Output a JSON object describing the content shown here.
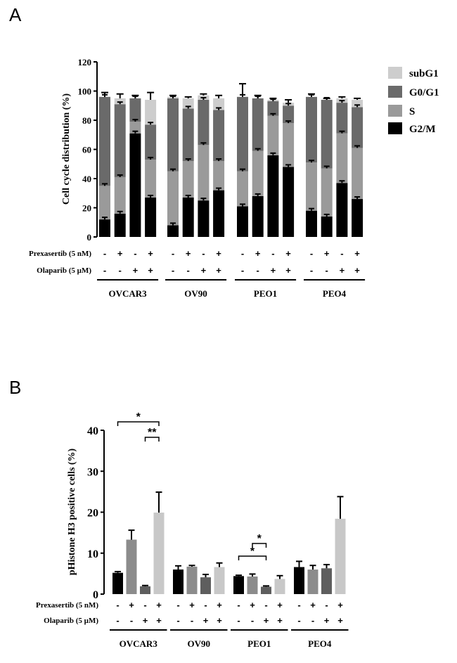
{
  "chart_data": [
    {
      "panel": "A",
      "type": "stacked-bar",
      "ylabel": "Cell cycle distribution (%)",
      "ylim": [
        0,
        120
      ],
      "yticks": [
        "0",
        "20",
        "40",
        "60",
        "80",
        "100",
        "120"
      ],
      "stack_order": [
        "G2/M",
        "S",
        "G0/G1",
        "subG1"
      ],
      "legend": [
        {
          "name": "subG1",
          "color": "#cdcdcd"
        },
        {
          "name": "G0/G1",
          "color": "#6a6a6a"
        },
        {
          "name": "S",
          "color": "#9a9a9a"
        },
        {
          "name": "G2/M",
          "color": "#000000"
        }
      ],
      "row_labels": [
        "Prexasertib (5 nM)",
        "Olaparib (5 µM)"
      ],
      "prexasertib_signs": [
        "-",
        "+",
        "-",
        "+"
      ],
      "olaparib_signs": [
        "-",
        "-",
        "+",
        "+"
      ],
      "groups": [
        {
          "name": "OVCAR3",
          "bars": [
            {
              "G2/M": 12,
              "S": 23,
              "G0/G1": 61,
              "subG1": 0
            },
            {
              "G2/M": 16,
              "S": 25,
              "G0/G1": 50,
              "subG1": 4
            },
            {
              "G2/M": 71,
              "S": 8,
              "G0/G1": 16,
              "subG1": 0
            },
            {
              "G2/M": 27,
              "S": 26,
              "G0/G1": 24,
              "subG1": 17
            }
          ]
        },
        {
          "name": "OV90",
          "bars": [
            {
              "G2/M": 8,
              "S": 37,
              "G0/G1": 50,
              "subG1": 1
            },
            {
              "G2/M": 27,
              "S": 25,
              "G0/G1": 36,
              "subG1": 7
            },
            {
              "G2/M": 25,
              "S": 38,
              "G0/G1": 31,
              "subG1": 3
            },
            {
              "G2/M": 32,
              "S": 20,
              "G0/G1": 35,
              "subG1": 8
            }
          ]
        },
        {
          "name": "PEO1",
          "bars": [
            {
              "G2/M": 21,
              "S": 24,
              "G0/G1": 51,
              "subG1": 0
            },
            {
              "G2/M": 28,
              "S": 31,
              "G0/G1": 36,
              "subG1": 0
            },
            {
              "G2/M": 56,
              "S": 27,
              "G0/G1": 10,
              "subG1": 1
            },
            {
              "G2/M": 48,
              "S": 30,
              "G0/G1": 12,
              "subG1": 2
            }
          ]
        },
        {
          "name": "PEO4",
          "bars": [
            {
              "G2/M": 18,
              "S": 33,
              "G0/G1": 45,
              "subG1": 0
            },
            {
              "G2/M": 14,
              "S": 33,
              "G0/G1": 47,
              "subG1": 0
            },
            {
              "G2/M": 37,
              "S": 34,
              "G0/G1": 21,
              "subG1": 3
            },
            {
              "G2/M": 26,
              "S": 35,
              "G0/G1": 28,
              "subG1": 5
            }
          ]
        }
      ]
    },
    {
      "panel": "B",
      "type": "bar",
      "ylabel": "pHistone H3 positive cells (%)",
      "ylim": [
        0,
        40
      ],
      "yticks": [
        "0",
        "10",
        "20",
        "30",
        "40"
      ],
      "bar_colors": [
        "#000000",
        "#8c8c8c",
        "#5e5e5e",
        "#c8c8c8"
      ],
      "row_labels": [
        "Prexasertib (5 nM)",
        "Olaparib (5 µM)"
      ],
      "prexasertib_signs": [
        "-",
        "+",
        "-",
        "+"
      ],
      "olaparib_signs": [
        "-",
        "-",
        "+",
        "+"
      ],
      "groups": [
        {
          "name": "OVCAR3",
          "values": [
            5.2,
            13.3,
            1.9,
            19.9
          ],
          "errors": [
            0.3,
            2.3,
            0.2,
            5.0
          ]
        },
        {
          "name": "OV90",
          "values": [
            6.0,
            6.7,
            4.1,
            6.6
          ],
          "errors": [
            0.9,
            0.3,
            0.7,
            1.0
          ]
        },
        {
          "name": "PEO1",
          "values": [
            4.4,
            4.3,
            1.8,
            3.7
          ],
          "errors": [
            0.2,
            0.6,
            0.2,
            0.8
          ]
        },
        {
          "name": "PEO4",
          "values": [
            6.6,
            6.0,
            6.3,
            18.4
          ],
          "errors": [
            1.4,
            1.0,
            0.9,
            5.4
          ]
        }
      ],
      "significance": [
        {
          "group": "OVCAR3",
          "from": 0,
          "to": 3,
          "label": "*"
        },
        {
          "group": "OVCAR3",
          "from": 2,
          "to": 3,
          "label": "**"
        },
        {
          "group": "PEO1",
          "from": 0,
          "to": 2,
          "label": "*"
        },
        {
          "group": "PEO1",
          "from": 1,
          "to": 2,
          "label": "*"
        }
      ]
    }
  ],
  "panels": {
    "a_letter": "A",
    "b_letter": "B"
  },
  "errors_a": {
    "OVCAR3": [
      3,
      3,
      2,
      5
    ],
    "OV90": [
      1,
      1,
      1,
      2
    ],
    "PEO1": [
      9,
      2,
      1,
      2
    ],
    "PEO4": [
      2,
      1,
      1,
      1
    ]
  }
}
